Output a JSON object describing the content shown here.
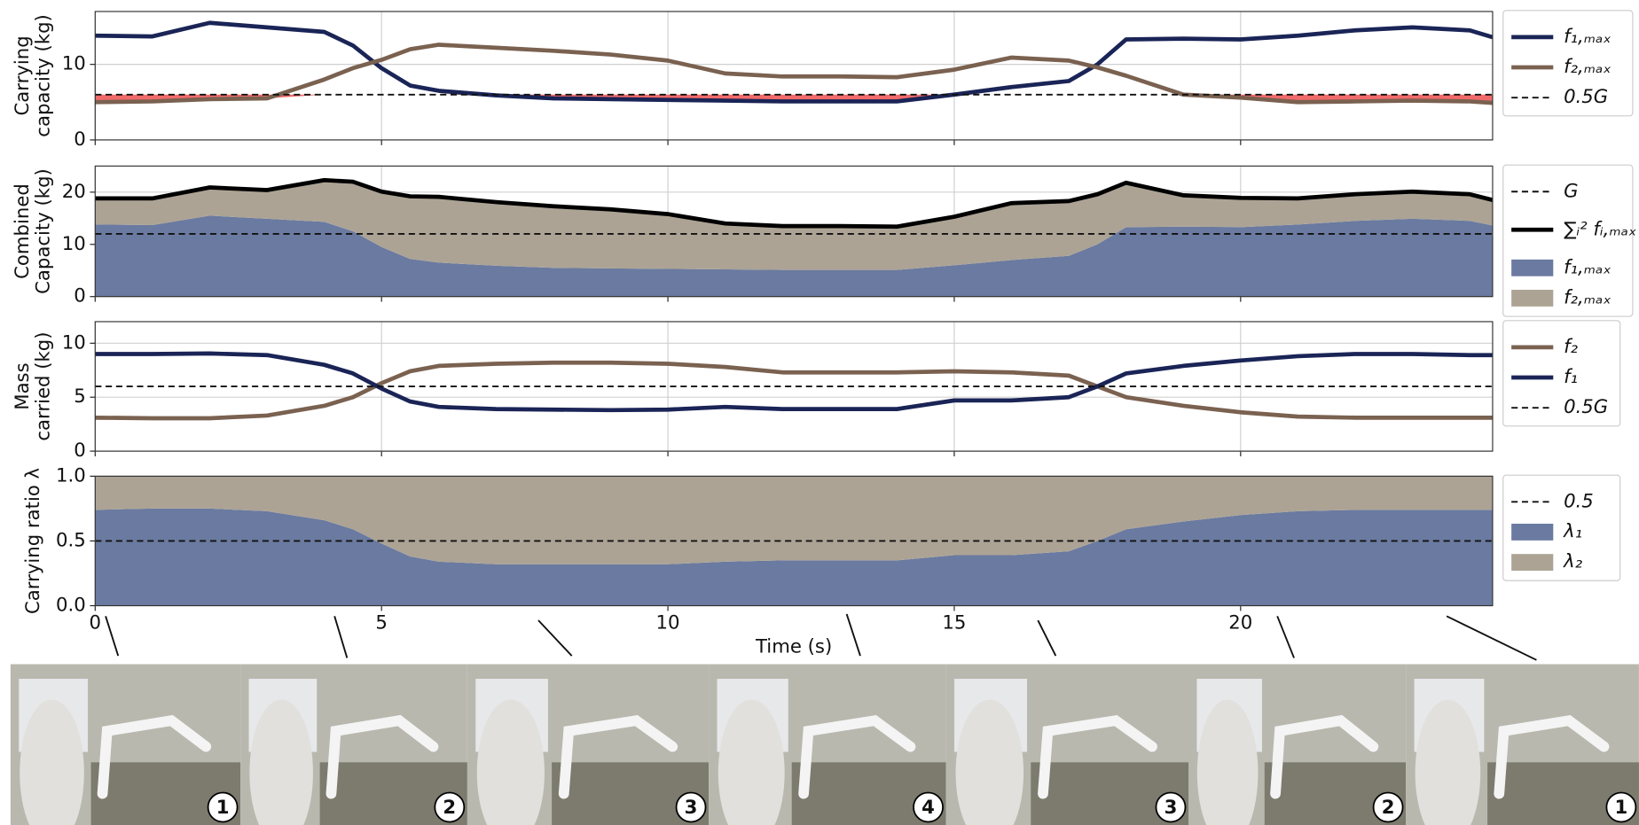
{
  "chart_data": [
    {
      "type": "line",
      "ylabel": [
        "Carrying",
        "capacity (kg)"
      ],
      "x": [
        0,
        1,
        2,
        3,
        4,
        4.5,
        5,
        5.5,
        6,
        7,
        8,
        9,
        10,
        11,
        12,
        13,
        14,
        15,
        16,
        17,
        17.5,
        18,
        19,
        20,
        21,
        22,
        23,
        24,
        24.4
      ],
      "series": [
        {
          "name": "f₁,ₘₐₓ",
          "color": "#1a2456",
          "values": [
            13.8,
            13.7,
            15.5,
            14.9,
            14.3,
            12.5,
            9.5,
            7.2,
            6.5,
            5.9,
            5.5,
            5.4,
            5.3,
            5.2,
            5.1,
            5.1,
            5.1,
            6.0,
            7.0,
            7.8,
            10.0,
            13.3,
            13.4,
            13.3,
            13.8,
            14.5,
            14.9,
            14.5,
            13.6
          ]
        },
        {
          "name": "f₂,ₘₐₓ",
          "color": "#7a6150",
          "values": [
            5.0,
            5.1,
            5.4,
            5.5,
            8.0,
            9.5,
            10.6,
            12.0,
            12.6,
            12.2,
            11.8,
            11.3,
            10.5,
            8.8,
            8.4,
            8.4,
            8.3,
            9.3,
            10.9,
            10.5,
            9.6,
            8.5,
            6.0,
            5.6,
            5.0,
            5.1,
            5.2,
            5.1,
            4.9
          ]
        }
      ],
      "reference_lines": [
        {
          "name": "0.5G",
          "value": 6
        }
      ],
      "shade_color": "#f05a5a",
      "xlim": [
        0,
        24.4
      ],
      "xticks": [
        0,
        5,
        10,
        15,
        20
      ],
      "xticklabels": false,
      "ylim": [
        0,
        17
      ],
      "yticks": [
        0,
        10
      ],
      "grid": true
    },
    {
      "type": "stacked_area",
      "ylabel": [
        "Combined",
        "Capacity (kg)"
      ],
      "x": [
        0,
        1,
        2,
        3,
        4,
        4.5,
        5,
        5.5,
        6,
        7,
        8,
        9,
        10,
        11,
        12,
        13,
        14,
        15,
        16,
        17,
        17.5,
        18,
        19,
        20,
        21,
        22,
        23,
        24,
        24.4
      ],
      "series": [
        {
          "name": "f₁,ₘₐₓ",
          "color": "#6a7aa0",
          "values": [
            13.8,
            13.7,
            15.5,
            14.9,
            14.3,
            12.5,
            9.5,
            7.2,
            6.5,
            5.9,
            5.5,
            5.4,
            5.3,
            5.2,
            5.1,
            5.1,
            5.1,
            6.0,
            7.0,
            7.8,
            10.0,
            13.3,
            13.4,
            13.3,
            13.8,
            14.5,
            14.9,
            14.5,
            13.6
          ]
        },
        {
          "name": "f₂,ₘₐₓ",
          "color": "#aca395",
          "values": [
            5.0,
            5.1,
            5.4,
            5.5,
            8.0,
            9.5,
            10.6,
            12.0,
            12.6,
            12.2,
            11.8,
            11.3,
            10.5,
            8.8,
            8.4,
            8.4,
            8.3,
            9.3,
            10.9,
            10.5,
            9.6,
            8.5,
            6.0,
            5.6,
            5.0,
            5.1,
            5.2,
            5.1,
            4.9
          ]
        }
      ],
      "total_line": {
        "name": "∑ᵢ² fᵢ,ₘₐₓ",
        "color": "#000000"
      },
      "reference_lines": [
        {
          "name": "G",
          "value": 12
        }
      ],
      "xlim": [
        0,
        24.4
      ],
      "xticks": [
        0,
        5,
        10,
        15,
        20
      ],
      "xticklabels": false,
      "ylim": [
        0,
        25
      ],
      "yticks": [
        0,
        10,
        20
      ],
      "grid": true
    },
    {
      "type": "line",
      "ylabel": [
        "Mass",
        "carried (kg)"
      ],
      "x": [
        0,
        1,
        2,
        3,
        4,
        4.5,
        5,
        5.5,
        6,
        7,
        8,
        9,
        10,
        11,
        12,
        13,
        14,
        15,
        16,
        17,
        17.5,
        18,
        19,
        20,
        21,
        22,
        23,
        24,
        24.4
      ],
      "series": [
        {
          "name": "f₂",
          "color": "#7a6150",
          "values": [
            3.1,
            3.05,
            3.05,
            3.3,
            4.2,
            5.0,
            6.3,
            7.4,
            7.9,
            8.1,
            8.2,
            8.2,
            8.1,
            7.8,
            7.3,
            7.3,
            7.3,
            7.4,
            7.3,
            7.0,
            6.0,
            5.0,
            4.2,
            3.6,
            3.2,
            3.1,
            3.1,
            3.1,
            3.1
          ]
        },
        {
          "name": "f₁",
          "color": "#1a2456",
          "values": [
            9.0,
            9.0,
            9.05,
            8.9,
            8.0,
            7.2,
            5.8,
            4.6,
            4.1,
            3.9,
            3.85,
            3.8,
            3.85,
            4.1,
            3.9,
            3.9,
            3.9,
            4.7,
            4.7,
            5.0,
            6.0,
            7.2,
            7.9,
            8.4,
            8.8,
            9.0,
            9.0,
            8.9,
            8.9
          ]
        }
      ],
      "reference_lines": [
        {
          "name": "0.5G",
          "value": 6
        }
      ],
      "xlim": [
        0,
        24.4
      ],
      "xticks": [
        0,
        5,
        10,
        15,
        20
      ],
      "xticklabels": false,
      "ylim": [
        0,
        12
      ],
      "yticks": [
        0,
        5,
        10
      ],
      "grid": true
    },
    {
      "type": "stacked_area",
      "ylabel": [
        "Carrying ratio λ"
      ],
      "xlabel": "Time (s)",
      "x": [
        0,
        1,
        2,
        3,
        4,
        4.5,
        5,
        5.5,
        6,
        7,
        8,
        9,
        10,
        11,
        12,
        13,
        14,
        15,
        16,
        17,
        17.5,
        18,
        19,
        20,
        21,
        22,
        23,
        24,
        24.4
      ],
      "series": [
        {
          "name": "λ₁",
          "color": "#6a7aa0",
          "values": [
            0.74,
            0.75,
            0.75,
            0.73,
            0.66,
            0.59,
            0.48,
            0.38,
            0.34,
            0.32,
            0.32,
            0.32,
            0.32,
            0.34,
            0.35,
            0.35,
            0.35,
            0.39,
            0.39,
            0.42,
            0.5,
            0.59,
            0.65,
            0.7,
            0.73,
            0.74,
            0.74,
            0.74,
            0.74
          ]
        },
        {
          "name": "λ₂",
          "color": "#aca395",
          "values": [
            0.26,
            0.25,
            0.25,
            0.27,
            0.34,
            0.41,
            0.52,
            0.62,
            0.66,
            0.68,
            0.68,
            0.68,
            0.68,
            0.66,
            0.65,
            0.65,
            0.65,
            0.61,
            0.61,
            0.58,
            0.5,
            0.41,
            0.35,
            0.3,
            0.27,
            0.26,
            0.26,
            0.26,
            0.26
          ]
        }
      ],
      "reference_lines": [
        {
          "name": "0.5",
          "value": 0.5
        }
      ],
      "xlim": [
        0,
        24.4
      ],
      "xticks": [
        0,
        5,
        10,
        15,
        20
      ],
      "xticklabels": true,
      "ylim": [
        0,
        1
      ],
      "yticks": [
        {
          "value": 0,
          "label": "0.0"
        },
        0.5,
        {
          "value": 1,
          "label": "1.0"
        }
      ],
      "grid": true
    }
  ],
  "photos": [
    {
      "label": "1"
    },
    {
      "label": "2"
    },
    {
      "label": "3"
    },
    {
      "label": "4"
    },
    {
      "label": "3"
    },
    {
      "label": "2"
    },
    {
      "label": "1"
    }
  ]
}
